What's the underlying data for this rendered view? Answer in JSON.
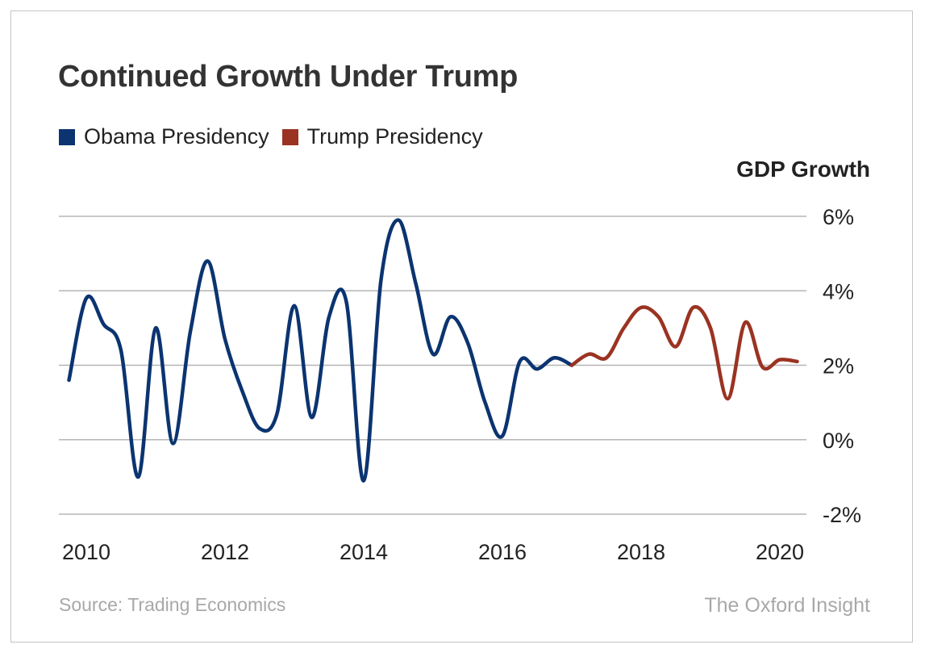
{
  "chart_data": {
    "type": "line",
    "title": "Continued Growth Under Trump",
    "xlabel": "",
    "ylabel": "GDP Growth",
    "ylim": [
      -2,
      6
    ],
    "xlim": [
      2009.75,
      2020.25
    ],
    "yticks": [
      6,
      4,
      2,
      0,
      -2
    ],
    "ytick_labels": [
      "6%",
      "4%",
      "2%",
      "0%",
      "-2%"
    ],
    "xticks": [
      2010,
      2012,
      2014,
      2016,
      2018,
      2020
    ],
    "xtick_labels": [
      "2010",
      "2012",
      "2014",
      "2016",
      "2018",
      "2020"
    ],
    "grid": true,
    "legend": "top-left",
    "series": [
      {
        "name": "Obama Presidency",
        "color": "#0b3470",
        "x": [
          2009.75,
          2010.0,
          2010.25,
          2010.5,
          2010.75,
          2011.0,
          2011.25,
          2011.5,
          2011.75,
          2012.0,
          2012.25,
          2012.5,
          2012.75,
          2013.0,
          2013.25,
          2013.5,
          2013.75,
          2014.0,
          2014.25,
          2014.5,
          2014.75,
          2015.0,
          2015.25,
          2015.5,
          2015.75,
          2016.0,
          2016.25,
          2016.5,
          2016.75,
          2017.0
        ],
        "values": [
          1.6,
          3.8,
          3.1,
          2.4,
          -1.0,
          3.0,
          -0.1,
          2.9,
          4.8,
          2.7,
          1.3,
          0.3,
          0.7,
          3.6,
          0.6,
          3.3,
          3.7,
          -1.1,
          4.3,
          5.9,
          4.2,
          2.3,
          3.3,
          2.6,
          1.0,
          0.1,
          2.1,
          1.9,
          2.2,
          2.0
        ]
      },
      {
        "name": "Trump Presidency",
        "color": "#9b3322",
        "x": [
          2017.0,
          2017.25,
          2017.5,
          2017.75,
          2018.0,
          2018.25,
          2018.5,
          2018.75,
          2019.0,
          2019.25,
          2019.5,
          2019.75,
          2020.0,
          2020.25
        ],
        "values": [
          2.0,
          2.3,
          2.2,
          3.0,
          3.55,
          3.3,
          2.5,
          3.55,
          3.0,
          1.1,
          3.15,
          1.95,
          2.15,
          2.1
        ]
      }
    ],
    "source": "Source: Trading Economics",
    "brand": "The Oxford Insight"
  }
}
